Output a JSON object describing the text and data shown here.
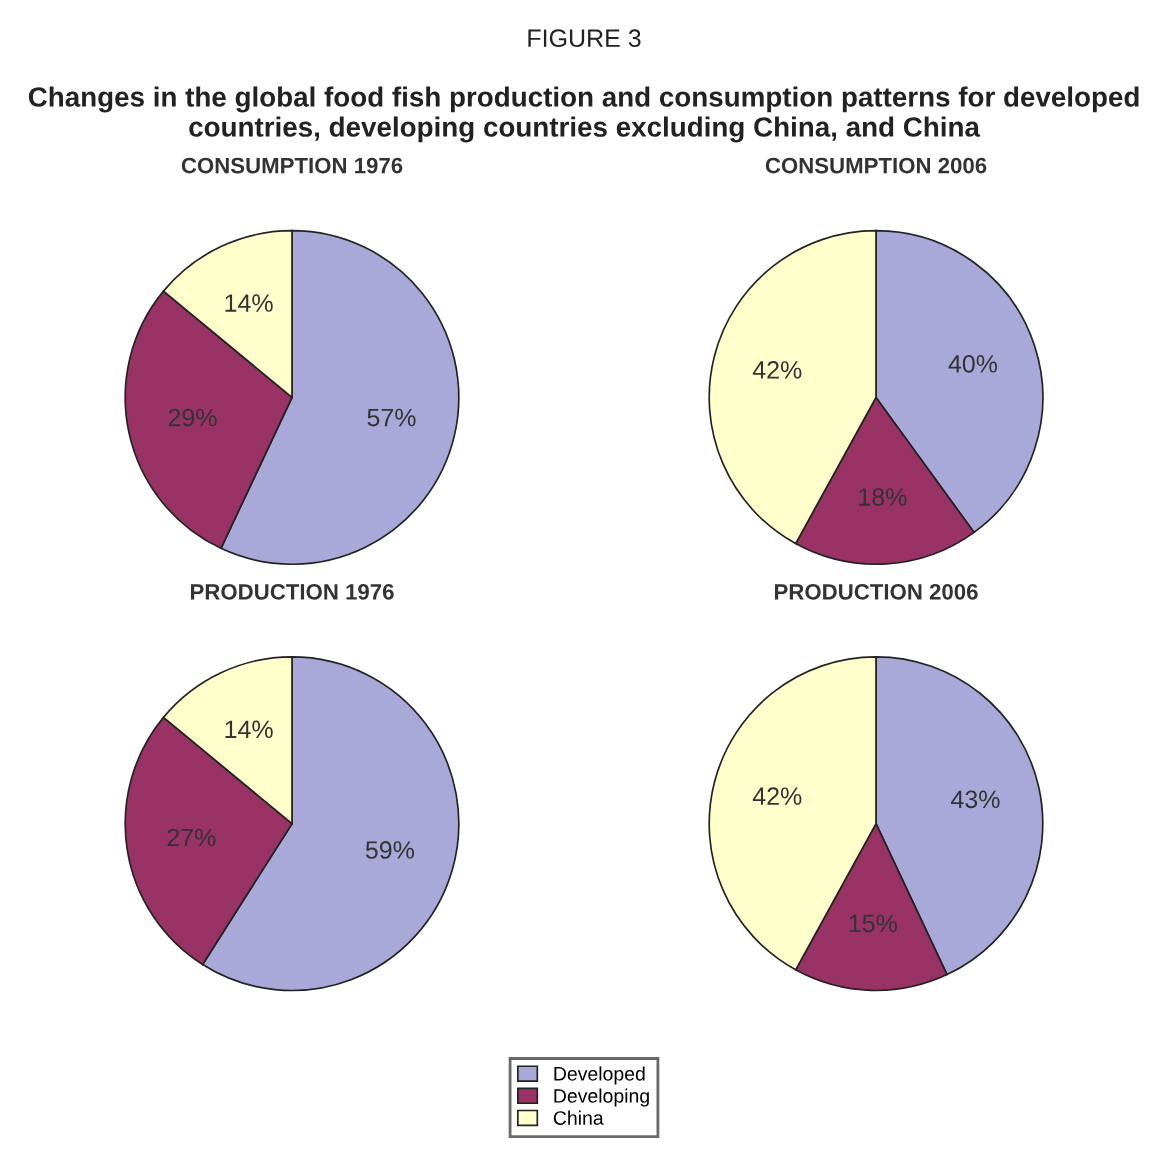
{
  "chart_data": [
    {
      "type": "pie",
      "title": "CONSUMPTION 1976",
      "annotations": [
        "FIGURE 3",
        "Changes in the global food fish production and consumption patterns for developed countries, developing countries excluding China, and China"
      ],
      "categories": [
        "Developed",
        "Developing",
        "China"
      ],
      "values": [
        57,
        29,
        14
      ],
      "value_labels": [
        "57%",
        "29%",
        "14%"
      ],
      "colors": [
        "#a9a9d9",
        "#993366",
        "#ffffcc"
      ],
      "legend": "bottom"
    },
    {
      "type": "pie",
      "title": "CONSUMPTION 2006",
      "categories": [
        null,
        null,
        null
      ],
      "values": [
        40,
        18,
        42
      ],
      "value_labels": [
        "40%",
        "18%",
        "42%"
      ],
      "colors": [
        "#a9a9d9",
        "#993366",
        "#ffffcc"
      ]
    },
    {
      "type": "pie",
      "title": "PRODUCTION 1976",
      "categories": [
        null,
        null,
        null
      ],
      "values": [
        59,
        27,
        14
      ],
      "value_labels": [
        "59%",
        "27%",
        "14%"
      ],
      "colors": [
        "#a9a9d9",
        "#993366",
        "#ffffcc"
      ]
    },
    {
      "type": "pie",
      "title": "PRODUCTION 2006",
      "categories": [
        null,
        null,
        null
      ],
      "values": [
        43,
        15,
        42
      ],
      "value_labels": [
        "43%",
        "15%",
        "42%"
      ],
      "colors": [
        "#a9a9d9",
        "#993366",
        "#ffffcc"
      ]
    }
  ]
}
